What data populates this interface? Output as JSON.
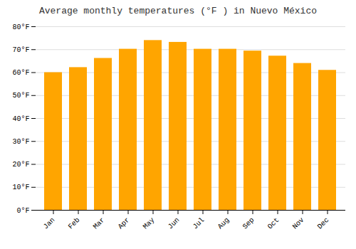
{
  "chart_data": {
    "type": "bar",
    "title": "Average monthly temperatures (°F ) in Nuevo México",
    "categories": [
      "Jan",
      "Feb",
      "Mar",
      "Apr",
      "May",
      "Jun",
      "Jul",
      "Aug",
      "Sep",
      "Oct",
      "Nov",
      "Dec"
    ],
    "values": [
      60.0,
      62.2,
      66.2,
      70.2,
      74.0,
      73.2,
      70.2,
      70.2,
      69.4,
      67.2,
      64.0,
      61.0
    ],
    "color": "#FFA500",
    "ylim": [
      0,
      80
    ],
    "yticks": [
      {
        "value": 0,
        "label": "0°F"
      },
      {
        "value": 10,
        "label": "10°F"
      },
      {
        "value": 20,
        "label": "20°F"
      },
      {
        "value": 30,
        "label": "30°F"
      },
      {
        "value": 40,
        "label": "40°F"
      },
      {
        "value": 50,
        "label": "50°F"
      },
      {
        "value": 60,
        "label": "60°F"
      },
      {
        "value": 70,
        "label": "70°F"
      },
      {
        "value": 80,
        "label": "80°F"
      }
    ],
    "grid": true
  }
}
